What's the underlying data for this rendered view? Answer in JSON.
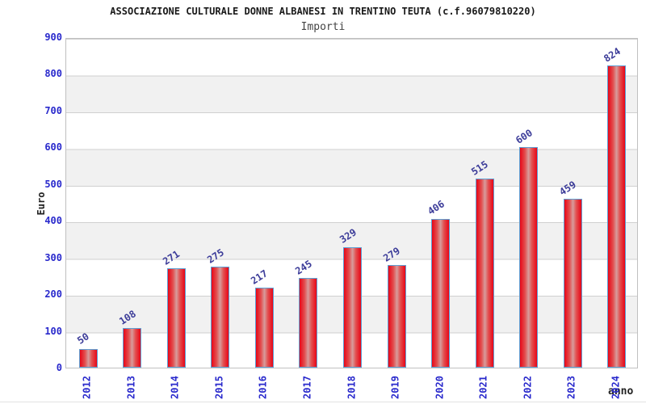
{
  "chart_data": {
    "type": "bar",
    "title": "ASSOCIAZIONE CULTURALE DONNE ALBANESI IN TRENTINO TEUTA (c.f.96079810220)",
    "subtitle": "Importi",
    "xlabel": "anno",
    "ylabel": "Euro",
    "categories": [
      "2012",
      "2013",
      "2014",
      "2015",
      "2016",
      "2017",
      "2018",
      "2019",
      "2020",
      "2021",
      "2022",
      "2023",
      "2024"
    ],
    "values": [
      50,
      108,
      271,
      275,
      217,
      245,
      329,
      279,
      406,
      515,
      600,
      459,
      824
    ],
    "ylim": [
      0,
      900
    ],
    "ytick_step": 100,
    "grid": true,
    "band_stripes": true,
    "legend_position": "none",
    "bar_labels_shown": true
  },
  "colors": {
    "bar_edge": "#e80617",
    "bar_mid": "#e25050",
    "bar_highlight": "#d79c9c",
    "bar_border": "#5e9fd4",
    "axis_tick_text": "#2929cc",
    "category_text": "#2929cc",
    "value_label_text": "#3c3c99",
    "title_text": "#1a1a1a",
    "subtitle_text": "#444444",
    "gridline": "#d0d0d0",
    "band_gray": "#f1f1f1"
  }
}
